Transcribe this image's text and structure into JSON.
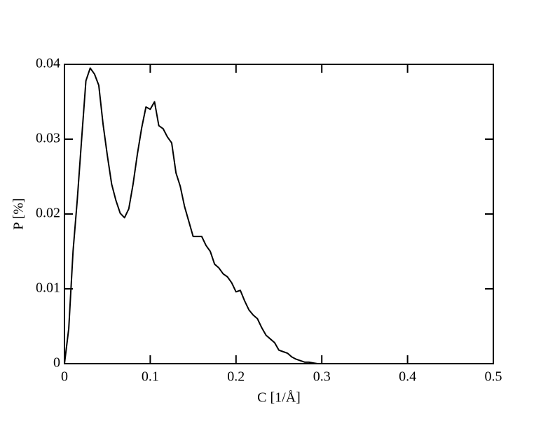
{
  "chart_data": {
    "type": "line",
    "x_label": "C [1/Å]",
    "y_label": "P [%]",
    "x": [
      0,
      0.005,
      0.01,
      0.015,
      0.02,
      0.025,
      0.03,
      0.035,
      0.04,
      0.045,
      0.05,
      0.055,
      0.06,
      0.065,
      0.07,
      0.075,
      0.08,
      0.085,
      0.09,
      0.095,
      0.1,
      0.105,
      0.11,
      0.115,
      0.12,
      0.125,
      0.13,
      0.135,
      0.14,
      0.145,
      0.15,
      0.155,
      0.16,
      0.165,
      0.17,
      0.175,
      0.18,
      0.185,
      0.19,
      0.195,
      0.2,
      0.205,
      0.21,
      0.215,
      0.22,
      0.225,
      0.23,
      0.235,
      0.24,
      0.245,
      0.25,
      0.255,
      0.26,
      0.265,
      0.27,
      0.275,
      0.28,
      0.285,
      0.29,
      0.295,
      0.3,
      0.32,
      0.34,
      0.36,
      0.38,
      0.4,
      0.42,
      0.44,
      0.46,
      0.48,
      0.5
    ],
    "series": [
      {
        "color": "#000000",
        "values": [
          0,
          0.0047,
          0.015,
          0.022,
          0.03,
          0.0378,
          0.0395,
          0.0387,
          0.0372,
          0.032,
          0.0278,
          0.024,
          0.0218,
          0.0201,
          0.0195,
          0.0207,
          0.024,
          0.028,
          0.0315,
          0.0343,
          0.034,
          0.035,
          0.0318,
          0.0314,
          0.0303,
          0.0295,
          0.0255,
          0.0237,
          0.021,
          0.019,
          0.017,
          0.017,
          0.017,
          0.0158,
          0.015,
          0.0133,
          0.0128,
          0.012,
          0.0116,
          0.0108,
          0.0096,
          0.0098,
          0.0084,
          0.0072,
          0.0065,
          0.006,
          0.0048,
          0.0038,
          0.0033,
          0.0028,
          0.0018,
          0.0016,
          0.0014,
          0.0009,
          0.0006,
          0.0004,
          0.0002,
          0.0002,
          0.0001,
          0,
          0,
          0,
          0,
          0,
          0,
          0,
          0,
          0,
          0,
          0,
          0
        ]
      }
    ],
    "xlim": [
      0,
      0.5
    ],
    "xticks": [
      0,
      0.1,
      0.2,
      0.3,
      0.4,
      0.5
    ],
    "ylim": [
      0,
      0.04
    ],
    "yticks": [
      0,
      0.01,
      0.02,
      0.03,
      0.04
    ]
  }
}
